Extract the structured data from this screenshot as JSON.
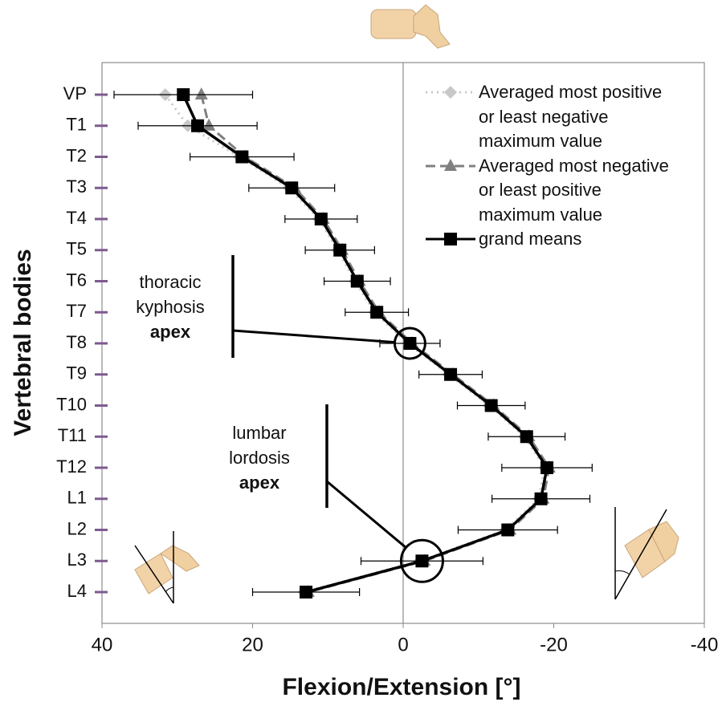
{
  "chart_data": {
    "type": "line",
    "orientation": "horizontal",
    "x_axis_label": "Flexion/Extension [°]",
    "y_axis_label": "Vertebral bodies",
    "categories": [
      "VP",
      "T1",
      "T2",
      "T3",
      "T4",
      "T5",
      "T6",
      "T7",
      "T8",
      "T9",
      "T10",
      "T11",
      "T12",
      "L1",
      "L2",
      "L3",
      "L4"
    ],
    "xlim": [
      40,
      -40
    ],
    "xticks": [
      40,
      20,
      0,
      -20,
      -40
    ],
    "legend": "upper right",
    "series": [
      {
        "name": "Averaged most positive or least negative maximum value",
        "color": "#c8c8c8",
        "style": "dotted",
        "marker": "diamond",
        "values": [
          31.6,
          28.6,
          21.8,
          15.2,
          11.2,
          8.7,
          6.4,
          3.8,
          -0.6,
          -6.0,
          -11.4,
          -16.1,
          -18.8,
          -18.0,
          -13.6,
          -2.2,
          13.2
        ]
      },
      {
        "name": "Averaged most negative or least positive maximum value",
        "color": "#808080",
        "style": "dashed",
        "marker": "triangle",
        "values": [
          26.8,
          25.8,
          21.0,
          14.4,
          10.6,
          8.1,
          5.8,
          3.2,
          -1.2,
          -6.6,
          -12.0,
          -16.7,
          -19.4,
          -18.6,
          -14.2,
          -2.8,
          12.6
        ]
      },
      {
        "name": "grand means",
        "color": "#000000",
        "style": "solid",
        "marker": "square",
        "values": [
          29.2,
          27.3,
          21.4,
          14.8,
          10.9,
          8.4,
          6.1,
          3.5,
          -0.9,
          -6.3,
          -11.7,
          -16.4,
          -19.1,
          -18.3,
          -13.9,
          -2.5,
          12.9
        ],
        "errors": [
          9.2,
          7.9,
          6.9,
          5.7,
          4.8,
          4.6,
          4.4,
          4.2,
          4.0,
          4.2,
          4.5,
          5.1,
          6.0,
          6.5,
          6.6,
          8.1,
          7.1
        ]
      }
    ],
    "annotations": [
      {
        "lines": [
          "thoracic",
          "kyphosis",
          "apex"
        ],
        "category": "T8"
      },
      {
        "lines": [
          "lumbar",
          "lordosis",
          "apex"
        ],
        "category": "L3"
      }
    ]
  }
}
